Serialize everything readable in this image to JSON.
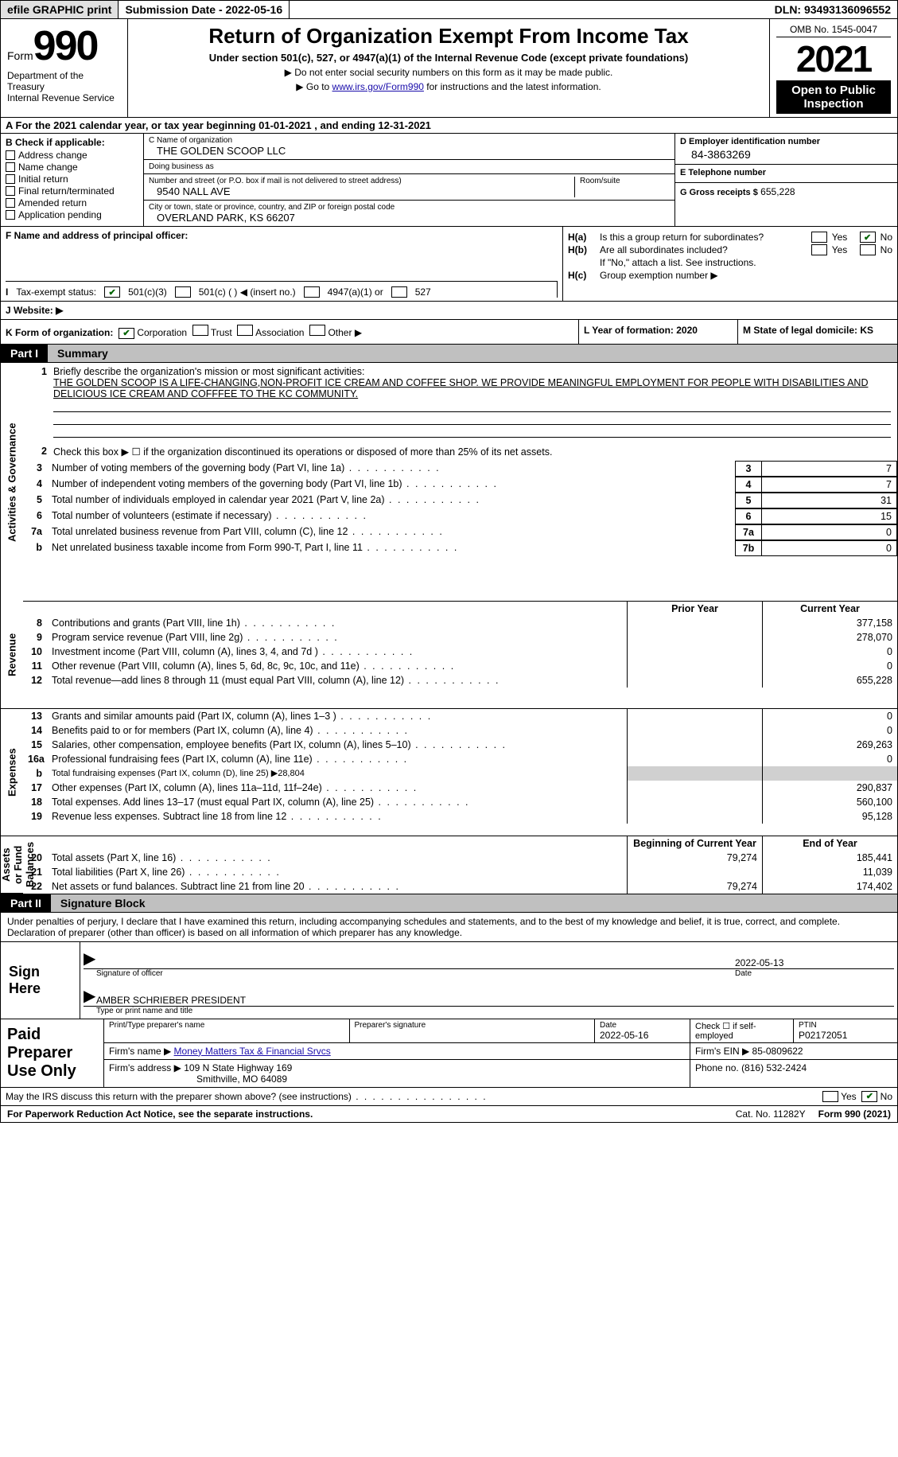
{
  "topbar": {
    "efile": "efile GRAPHIC print",
    "submission": "Submission Date - 2022-05-16",
    "dln": "DLN: 93493136096552"
  },
  "header": {
    "form_label": "Form",
    "form_number": "990",
    "dept": "Department of the Treasury",
    "irs": "Internal Revenue Service",
    "title": "Return of Organization Exempt From Income Tax",
    "subtitle": "Under section 501(c), 527, or 4947(a)(1) of the Internal Revenue Code (except private foundations)",
    "note1": "▶ Do not enter social security numbers on this form as it may be made public.",
    "note2_pre": "▶ Go to ",
    "note2_link": "www.irs.gov/Form990",
    "note2_post": " for instructions and the latest information.",
    "omb": "OMB No. 1545-0047",
    "year": "2021",
    "open": "Open to Public Inspection"
  },
  "section_a": "A For the 2021 calendar year, or tax year beginning 01-01-2021    , and ending 12-31-2021",
  "col_b": {
    "header": "B Check if applicable:",
    "items": [
      "Address change",
      "Name change",
      "Initial return",
      "Final return/terminated",
      "Amended return",
      "Application pending"
    ]
  },
  "col_c": {
    "name_label": "C Name of organization",
    "name": "THE GOLDEN SCOOP LLC",
    "dba_label": "Doing business as",
    "dba": "",
    "addr_label": "Number and street (or P.O. box if mail is not delivered to street address)",
    "room_label": "Room/suite",
    "addr": "9540 NALL AVE",
    "city_label": "City or town, state or province, country, and ZIP or foreign postal code",
    "city": "OVERLAND PARK, KS  66207"
  },
  "col_d": {
    "ein_label": "D Employer identification number",
    "ein": "84-3863269",
    "phone_label": "E Telephone number",
    "phone": "",
    "gross_label": "G Gross receipts $",
    "gross": "655,228"
  },
  "f_label": "F Name and address of principal officer:",
  "h": {
    "a_label": "H(a)",
    "a_text": "Is this a group return for subordinates?",
    "b_label": "H(b)",
    "b_text": "Are all subordinates included?",
    "b_note": "If \"No,\" attach a list. See instructions.",
    "c_label": "H(c)",
    "c_text": "Group exemption number ▶",
    "yes": "Yes",
    "no": "No"
  },
  "i": {
    "label": "Tax-exempt status:",
    "o1": "501(c)(3)",
    "o2": "501(c) (   ) ◀ (insert no.)",
    "o3": "4947(a)(1) or",
    "o4": "527"
  },
  "j_label": "J   Website: ▶",
  "k": {
    "label": "K Form of organization:",
    "o1": "Corporation",
    "o2": "Trust",
    "o3": "Association",
    "o4": "Other ▶",
    "l": "L Year of formation: 2020",
    "m": "M State of legal domicile: KS"
  },
  "part1": {
    "num": "Part I",
    "title": "Summary"
  },
  "vlabels": {
    "gov": "Activities & Governance",
    "rev": "Revenue",
    "exp": "Expenses",
    "net": "Net Assets or Fund Balances"
  },
  "mission": {
    "n": "1",
    "label": "Briefly describe the organization's mission or most significant activities:",
    "text": "THE GOLDEN SCOOP IS A LIFE-CHANGING,NON-PROFIT ICE CREAM AND COFFEE SHOP. WE PROVIDE MEANINGFUL EMPLOYMENT FOR PEOPLE WITH DISABILITIES AND DELICIOUS ICE CREAM AND COFFFEE TO THE KC COMMUNITY."
  },
  "line2": {
    "n": "2",
    "text": "Check this box ▶ ☐ if the organization discontinued its operations or disposed of more than 25% of its net assets."
  },
  "gov_rows": [
    {
      "n": "3",
      "desc": "Number of voting members of the governing body (Part VI, line 1a)",
      "box": "3",
      "val": "7"
    },
    {
      "n": "4",
      "desc": "Number of independent voting members of the governing body (Part VI, line 1b)",
      "box": "4",
      "val": "7"
    },
    {
      "n": "5",
      "desc": "Total number of individuals employed in calendar year 2021 (Part V, line 2a)",
      "box": "5",
      "val": "31"
    },
    {
      "n": "6",
      "desc": "Total number of volunteers (estimate if necessary)",
      "box": "6",
      "val": "15"
    },
    {
      "n": "7a",
      "desc": "Total unrelated business revenue from Part VIII, column (C), line 12",
      "box": "7a",
      "val": "0"
    },
    {
      "n": "b",
      "desc": "Net unrelated business taxable income from Form 990-T, Part I, line 11",
      "box": "7b",
      "val": "0"
    }
  ],
  "col_hdrs": {
    "prior": "Prior Year",
    "current": "Current Year"
  },
  "rev_rows": [
    {
      "n": "8",
      "desc": "Contributions and grants (Part VIII, line 1h)",
      "prior": "",
      "current": "377,158"
    },
    {
      "n": "9",
      "desc": "Program service revenue (Part VIII, line 2g)",
      "prior": "",
      "current": "278,070"
    },
    {
      "n": "10",
      "desc": "Investment income (Part VIII, column (A), lines 3, 4, and 7d )",
      "prior": "",
      "current": "0"
    },
    {
      "n": "11",
      "desc": "Other revenue (Part VIII, column (A), lines 5, 6d, 8c, 9c, 10c, and 11e)",
      "prior": "",
      "current": "0"
    },
    {
      "n": "12",
      "desc": "Total revenue—add lines 8 through 11 (must equal Part VIII, column (A), line 12)",
      "prior": "",
      "current": "655,228"
    }
  ],
  "exp_rows": [
    {
      "n": "13",
      "desc": "Grants and similar amounts paid (Part IX, column (A), lines 1–3 )",
      "prior": "",
      "current": "0"
    },
    {
      "n": "14",
      "desc": "Benefits paid to or for members (Part IX, column (A), line 4)",
      "prior": "",
      "current": "0"
    },
    {
      "n": "15",
      "desc": "Salaries, other compensation, employee benefits (Part IX, column (A), lines 5–10)",
      "prior": "",
      "current": "269,263"
    },
    {
      "n": "16a",
      "desc": "Professional fundraising fees (Part IX, column (A), line 11e)",
      "prior": "",
      "current": "0"
    }
  ],
  "line16b": {
    "n": "b",
    "desc": "Total fundraising expenses (Part IX, column (D), line 25) ▶28,804"
  },
  "exp_rows2": [
    {
      "n": "17",
      "desc": "Other expenses (Part IX, column (A), lines 11a–11d, 11f–24e)",
      "prior": "",
      "current": "290,837"
    },
    {
      "n": "18",
      "desc": "Total expenses. Add lines 13–17 (must equal Part IX, column (A), line 25)",
      "prior": "",
      "current": "560,100"
    },
    {
      "n": "19",
      "desc": "Revenue less expenses. Subtract line 18 from line 12",
      "prior": "",
      "current": "95,128"
    }
  ],
  "net_hdrs": {
    "begin": "Beginning of Current Year",
    "end": "End of Year"
  },
  "net_rows": [
    {
      "n": "20",
      "desc": "Total assets (Part X, line 16)",
      "prior": "79,274",
      "current": "185,441"
    },
    {
      "n": "21",
      "desc": "Total liabilities (Part X, line 26)",
      "prior": "",
      "current": "11,039"
    },
    {
      "n": "22",
      "desc": "Net assets or fund balances. Subtract line 21 from line 20",
      "prior": "79,274",
      "current": "174,402"
    }
  ],
  "part2": {
    "num": "Part II",
    "title": "Signature Block"
  },
  "sig_text": "Under penalties of perjury, I declare that I have examined this return, including accompanying schedules and statements, and to the best of my knowledge and belief, it is true, correct, and complete. Declaration of preparer (other than officer) is based on all information of which preparer has any knowledge.",
  "sign": {
    "here": "Sign Here",
    "sig_label": "Signature of officer",
    "date_label": "Date",
    "date": "2022-05-13",
    "name": "AMBER SCHRIEBER  PRESIDENT",
    "name_label": "Type or print name and title"
  },
  "prep": {
    "title": "Paid Preparer Use Only",
    "h1": "Print/Type preparer's name",
    "h2": "Preparer's signature",
    "h3_label": "Date",
    "h3": "2022-05-16",
    "h4": "Check ☐ if self-employed",
    "h5_label": "PTIN",
    "h5": "P02172051",
    "firm_label": "Firm's name    ▶",
    "firm": "Money Matters Tax & Financial Srvcs",
    "ein_label": "Firm's EIN ▶",
    "ein": "85-0809622",
    "addr_label": "Firm's address ▶",
    "addr1": "109 N State Highway 169",
    "addr2": "Smithville, MO  64089",
    "phone_label": "Phone no.",
    "phone": "(816) 532-2424"
  },
  "discuss": {
    "q": "May the IRS discuss this return with the preparer shown above? (see instructions)",
    "yes": "Yes",
    "no": "No"
  },
  "footer": {
    "left": "For Paperwork Reduction Act Notice, see the separate instructions.",
    "center": "Cat. No. 11282Y",
    "right": "Form 990 (2021)"
  }
}
